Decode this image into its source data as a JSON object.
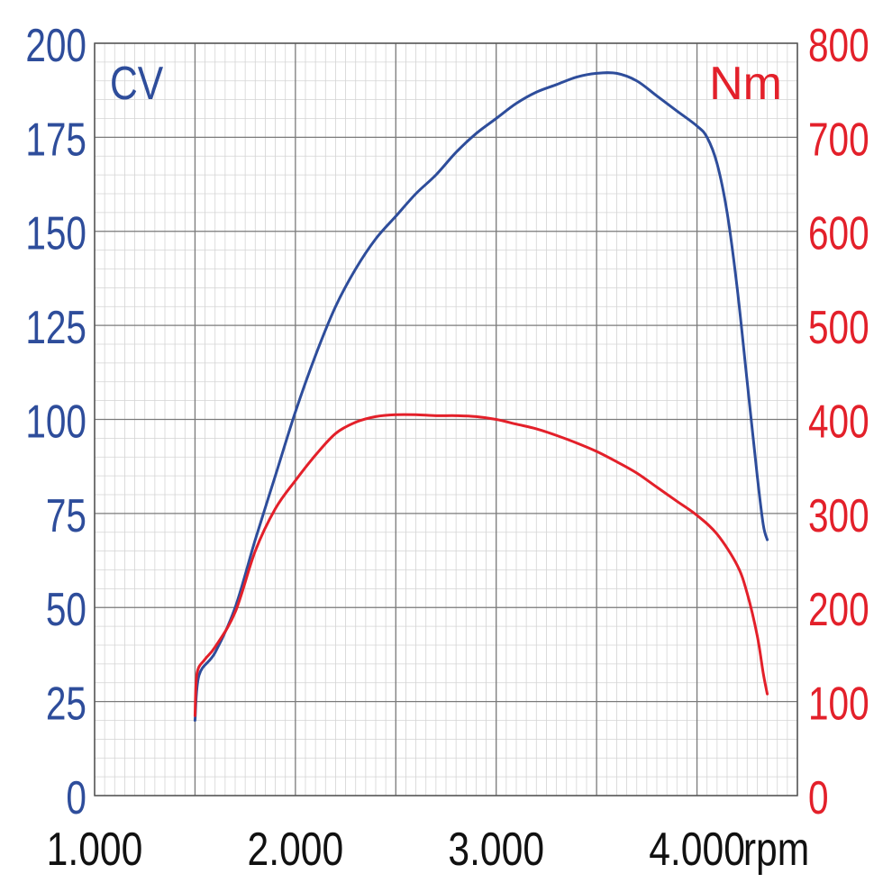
{
  "chart_data": {
    "type": "line",
    "x_unit": "rpm",
    "x_ticks": [
      "1.000",
      "2.000",
      "3.000",
      "4.000"
    ],
    "xlim": [
      1000,
      4500
    ],
    "left_axis": {
      "unit": "CV",
      "ylim": [
        0,
        200
      ],
      "ticks": [
        "0",
        "25",
        "50",
        "75",
        "100",
        "125",
        "150",
        "175",
        "200"
      ],
      "color": "#2e4d9b"
    },
    "right_axis": {
      "unit": "Nm",
      "ylim": [
        0,
        800
      ],
      "ticks": [
        "0",
        "100",
        "200",
        "300",
        "400",
        "500",
        "600",
        "700",
        "800"
      ],
      "color": "#e3202a"
    },
    "series": [
      {
        "axis": "left",
        "color": "#2e4d9b",
        "x": [
          1500,
          1520,
          1600,
          1700,
          1800,
          1900,
          2000,
          2100,
          2200,
          2300,
          2400,
          2500,
          2600,
          2700,
          2800,
          2900,
          3000,
          3100,
          3200,
          3300,
          3400,
          3500,
          3600,
          3700,
          3800,
          3900,
          4000,
          4050,
          4100,
          4150,
          4200,
          4250,
          4300,
          4330,
          4350
        ],
        "y": [
          20,
          32,
          38,
          50,
          68,
          85,
          102,
          117,
          130,
          140,
          148,
          154,
          160,
          165,
          171,
          176,
          180,
          184,
          187,
          189,
          191,
          192,
          192,
          190,
          186,
          182,
          178,
          175,
          168,
          155,
          135,
          110,
          85,
          72,
          68
        ]
      },
      {
        "axis": "right",
        "color": "#e3202a",
        "x": [
          1500,
          1510,
          1550,
          1600,
          1700,
          1800,
          1900,
          2000,
          2100,
          2200,
          2300,
          2400,
          2500,
          2600,
          2700,
          2800,
          2900,
          3000,
          3100,
          3200,
          3300,
          3400,
          3500,
          3600,
          3700,
          3800,
          3900,
          4000,
          4100,
          4200,
          4250,
          4300,
          4330,
          4350
        ],
        "y": [
          85,
          130,
          145,
          158,
          195,
          260,
          305,
          335,
          362,
          385,
          397,
          403,
          405,
          405,
          404,
          404,
          403,
          400,
          395,
          390,
          383,
          375,
          366,
          355,
          343,
          328,
          313,
          298,
          278,
          245,
          215,
          170,
          130,
          108
        ]
      }
    ],
    "grid": true
  }
}
